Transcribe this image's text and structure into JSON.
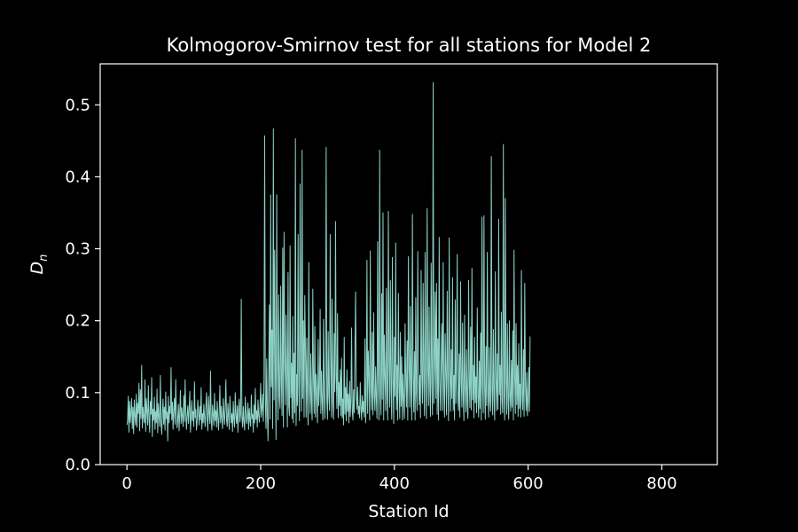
{
  "chart_data": {
    "type": "line",
    "title": "Kolmogorov-Smirnov test for all stations for Model 2",
    "xlabel": "Station Id",
    "ylabel_main": "D",
    "ylabel_sub": "n",
    "xlim": [
      -40,
      883
    ],
    "ylim": [
      0.0,
      0.557
    ],
    "xticks": [
      0,
      200,
      400,
      600,
      800
    ],
    "yticks": [
      0.0,
      0.1,
      0.2,
      0.3,
      0.4,
      0.5
    ],
    "xtick_labels": [
      "0",
      "200",
      "400",
      "600",
      "800"
    ],
    "ytick_labels": [
      "0.0",
      "0.1",
      "0.2",
      "0.3",
      "0.4",
      "0.5"
    ],
    "grid": false,
    "colors": {
      "background": "#000000",
      "axes": "#ffffff",
      "series": "#8dd3c7"
    },
    "series": [
      {
        "x_start": 0,
        "x_step": 1,
        "values": [
          0.055,
          0.062,
          0.095,
          0.045,
          0.088,
          0.058,
          0.072,
          0.092,
          0.05,
          0.08,
          0.043,
          0.09,
          0.067,
          0.055,
          0.098,
          0.052,
          0.085,
          0.071,
          0.113,
          0.047,
          0.104,
          0.064,
          0.138,
          0.051,
          0.08,
          0.066,
          0.058,
          0.118,
          0.046,
          0.092,
          0.075,
          0.055,
          0.11,
          0.063,
          0.045,
          0.088,
          0.07,
          0.121,
          0.039,
          0.077,
          0.062,
          0.094,
          0.049,
          0.074,
          0.058,
          0.105,
          0.044,
          0.085,
          0.066,
          0.053,
          0.124,
          0.06,
          0.042,
          0.07,
          0.091,
          0.056,
          0.08,
          0.048,
          0.101,
          0.064,
          0.073,
          0.033,
          0.095,
          0.058,
          0.081,
          0.071,
          0.135,
          0.062,
          0.087,
          0.049,
          0.076,
          0.092,
          0.056,
          0.118,
          0.069,
          0.051,
          0.064,
          0.084,
          0.047,
          0.072,
          0.103,
          0.057,
          0.079,
          0.066,
          0.053,
          0.096,
          0.06,
          0.118,
          0.073,
          0.049,
          0.068,
          0.082,
          0.057,
          0.076,
          0.102,
          0.045,
          0.066,
          0.089,
          0.061,
          0.074,
          0.053,
          0.115,
          0.065,
          0.077,
          0.048,
          0.06,
          0.09,
          0.072,
          0.055,
          0.081,
          0.062,
          0.107,
          0.049,
          0.071,
          0.058,
          0.084,
          0.066,
          0.053,
          0.079,
          0.1,
          0.063,
          0.047,
          0.095,
          0.07,
          0.057,
          0.13,
          0.062,
          0.048,
          0.083,
          0.069,
          0.054,
          0.099,
          0.061,
          0.075,
          0.052,
          0.088,
          0.066,
          0.048,
          0.073,
          0.11,
          0.058,
          0.081,
          0.064,
          0.05,
          0.092,
          0.07,
          0.056,
          0.079,
          0.118,
          0.061,
          0.053,
          0.085,
          0.067,
          0.049,
          0.095,
          0.074,
          0.058,
          0.071,
          0.046,
          0.088,
          0.063,
          0.052,
          0.1,
          0.068,
          0.057,
          0.082,
          0.045,
          0.076,
          0.091,
          0.059,
          0.07,
          0.23,
          0.065,
          0.052,
          0.081,
          0.06,
          0.048,
          0.094,
          0.072,
          0.057,
          0.066,
          0.086,
          0.049,
          0.078,
          0.061,
          0.053,
          0.097,
          0.064,
          0.07,
          0.045,
          0.083,
          0.058,
          0.106,
          0.063,
          0.075,
          0.052,
          0.09,
          0.068,
          0.059,
          0.081,
          0.113,
          0.066,
          0.078,
          0.098,
          0.06,
          0.12,
          0.457,
          0.085,
          0.05,
          0.147,
          0.07,
          0.033,
          0.118,
          0.222,
          0.063,
          0.375,
          0.108,
          0.187,
          0.05,
          0.467,
          0.09,
          0.298,
          0.121,
          0.035,
          0.375,
          0.14,
          0.062,
          0.236,
          0.095,
          0.078,
          0.248,
          0.112,
          0.068,
          0.301,
          0.052,
          0.323,
          0.143,
          0.083,
          0.208,
          0.121,
          0.052,
          0.267,
          0.082,
          0.068,
          0.304,
          0.093,
          0.141,
          0.064,
          0.206,
          0.058,
          0.155,
          0.072,
          0.453,
          0.054,
          0.125,
          0.082,
          0.32,
          0.108,
          0.061,
          0.39,
          0.136,
          0.074,
          0.437,
          0.092,
          0.2,
          0.066,
          0.235,
          0.158,
          0.066,
          0.176,
          0.093,
          0.055,
          0.281,
          0.112,
          0.071,
          0.154,
          0.086,
          0.062,
          0.244,
          0.119,
          0.071,
          0.192,
          0.066,
          0.126,
          0.095,
          0.058,
          0.174,
          0.082,
          0.106,
          0.216,
          0.071,
          0.13,
          0.085,
          0.062,
          0.202,
          0.1,
          0.064,
          0.125,
          0.441,
          0.09,
          0.063,
          0.185,
          0.094,
          0.075,
          0.32,
          0.148,
          0.066,
          0.23,
          0.085,
          0.063,
          0.182,
          0.101,
          0.338,
          0.126,
          0.078,
          0.21,
          0.065,
          0.114,
          0.082,
          0.132,
          0.068,
          0.148,
          0.065,
          0.091,
          0.055,
          0.177,
          0.07,
          0.107,
          0.061,
          0.132,
          0.074,
          0.098,
          0.058,
          0.116,
          0.067,
          0.089,
          0.19,
          0.075,
          0.062,
          0.104,
          0.072,
          0.157,
          0.24,
          0.093,
          0.077,
          0.108,
          0.07,
          0.081,
          0.065,
          0.114,
          0.079,
          0.062,
          0.096,
          0.073,
          0.088,
          0.066,
          0.175,
          0.058,
          0.098,
          0.284,
          0.071,
          0.158,
          0.124,
          0.062,
          0.297,
          0.104,
          0.076,
          0.184,
          0.069,
          0.211,
          0.095,
          0.075,
          0.136,
          0.091,
          0.064,
          0.31,
          0.125,
          0.062,
          0.437,
          0.1,
          0.069,
          0.238,
          0.091,
          0.35,
          0.062,
          0.18,
          0.12,
          0.075,
          0.245,
          0.094,
          0.062,
          0.352,
          0.143,
          0.08,
          0.256,
          0.103,
          0.063,
          0.288,
          0.12,
          0.057,
          0.177,
          0.095,
          0.308,
          0.076,
          0.138,
          0.062,
          0.238,
          0.109,
          0.064,
          0.184,
          0.081,
          0.15,
          0.062,
          0.126,
          0.089,
          0.064,
          0.196,
          0.121,
          0.08,
          0.172,
          0.062,
          0.289,
          0.138,
          0.08,
          0.22,
          0.1,
          0.062,
          0.348,
          0.126,
          0.073,
          0.157,
          0.062,
          0.232,
          0.1,
          0.075,
          0.296,
          0.137,
          0.083,
          0.124,
          0.065,
          0.27,
          0.122,
          0.085,
          0.252,
          0.112,
          0.068,
          0.295,
          0.115,
          0.064,
          0.356,
          0.134,
          0.082,
          0.219,
          0.104,
          0.067,
          0.28,
          0.113,
          0.069,
          0.531,
          0.085,
          0.134,
          0.24,
          0.092,
          0.252,
          0.07,
          0.175,
          0.062,
          0.316,
          0.114,
          0.075,
          0.14,
          0.196,
          0.075,
          0.281,
          0.103,
          0.066,
          0.182,
          0.126,
          0.069,
          0.241,
          0.114,
          0.061,
          0.315,
          0.127,
          0.074,
          0.16,
          0.092,
          0.26,
          0.075,
          0.124,
          0.062,
          0.229,
          0.085,
          0.141,
          0.292,
          0.088,
          0.075,
          0.154,
          0.066,
          0.254,
          0.117,
          0.08,
          0.197,
          0.094,
          0.061,
          0.208,
          0.107,
          0.073,
          0.16,
          0.084,
          0.064,
          0.256,
          0.112,
          0.079,
          0.191,
          0.076,
          0.273,
          0.09,
          0.138,
          0.065,
          0.177,
          0.086,
          0.122,
          0.072,
          0.218,
          0.096,
          0.066,
          0.144,
          0.078,
          0.183,
          0.062,
          0.344,
          0.11,
          0.072,
          0.346,
          0.106,
          0.063,
          0.164,
          0.082,
          0.295,
          0.095,
          0.066,
          0.163,
          0.088,
          0.074,
          0.428,
          0.104,
          0.069,
          0.188,
          0.094,
          0.062,
          0.268,
          0.118,
          0.075,
          0.154,
          0.077,
          0.341,
          0.097,
          0.138,
          0.07,
          0.212,
          0.09,
          0.072,
          0.445,
          0.096,
          0.062,
          0.37,
          0.118,
          0.07,
          0.196,
          0.085,
          0.063,
          0.2,
          0.094,
          0.074,
          0.145,
          0.08,
          0.186,
          0.062,
          0.298,
          0.12,
          0.071,
          0.196,
          0.083,
          0.138,
          0.067,
          0.168,
          0.078,
          0.112,
          0.066,
          0.27,
          0.097,
          0.076,
          0.16,
          0.067,
          0.252,
          0.11,
          0.075,
          0.128,
          0.068,
          0.086,
          0.135,
          0.074,
          0.178
        ]
      }
    ]
  }
}
